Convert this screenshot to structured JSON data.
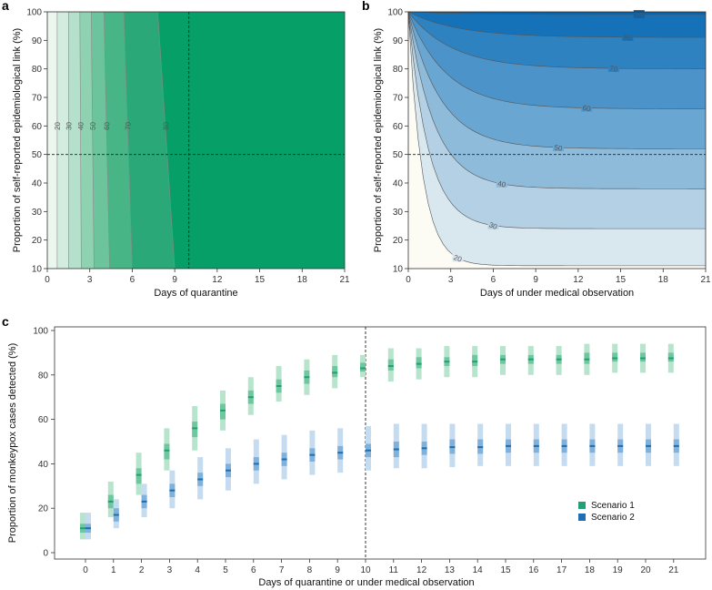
{
  "chart_data": [
    {
      "panel": "a",
      "type": "heatmap",
      "xlabel": "Days of quarantine",
      "ylabel": "Proportion of self-reported epidemiological link (%)",
      "xlim": [
        0,
        21
      ],
      "ylim": [
        10,
        100
      ],
      "xticks": [
        "0",
        "3",
        "6",
        "9",
        "12",
        "15",
        "18",
        "21"
      ],
      "yticks": [
        "10",
        "20",
        "30",
        "40",
        "50",
        "60",
        "70",
        "80",
        "90",
        "100"
      ],
      "contour_levels": [
        20,
        30,
        40,
        50,
        60,
        70,
        80
      ],
      "contour_label_text": [
        "20",
        "30",
        "40",
        "50",
        "60",
        "70",
        "80"
      ],
      "contour_x_at_10pct": [
        0.7,
        1.5,
        2.4,
        3.3,
        4.4,
        6.0,
        9.0
      ],
      "contour_x_at_100pct": [
        0.7,
        1.5,
        2.3,
        3.1,
        4.0,
        5.4,
        7.8
      ],
      "reference_x": 10,
      "reference_y": 50,
      "colors": [
        "#eaf6ee",
        "#d2ede0",
        "#b5e1cc",
        "#8fd2b2",
        "#6bc49c",
        "#47b585",
        "#2aa878",
        "#079f68"
      ]
    },
    {
      "panel": "b",
      "type": "heatmap",
      "xlabel": "Days of under medical observation",
      "ylabel": "Proportion of self-reported epidemiological link (%)",
      "xlim": [
        0,
        21
      ],
      "ylim": [
        10,
        100
      ],
      "xticks": [
        "0",
        "3",
        "6",
        "9",
        "12",
        "15",
        "18",
        "21"
      ],
      "yticks": [
        "10",
        "20",
        "30",
        "40",
        "50",
        "60",
        "70",
        "80",
        "90",
        "100"
      ],
      "contour_levels": [
        20,
        30,
        40,
        50,
        60,
        70,
        80,
        90
      ],
      "contour_label_text": [
        "20",
        "30",
        "40",
        "50",
        "60",
        "70",
        "80",
        "90"
      ],
      "contour_plateau_y": [
        11,
        24,
        38,
        52,
        66,
        80,
        91,
        99
      ],
      "reference_y": 50,
      "colors": [
        "#fcfbf4",
        "#d9e7ef",
        "#b4d0e4",
        "#8ebbda",
        "#6aa6d2",
        "#4c93c9",
        "#2f82c0",
        "#1672b8",
        "#0864ad"
      ]
    },
    {
      "panel": "c",
      "type": "scatter",
      "xlabel": "Days of quarantine or under medical observation",
      "ylabel": "Proportion of monkeypox cases detected (%)",
      "categories": [
        "0",
        "1",
        "2",
        "3",
        "4",
        "5",
        "6",
        "7",
        "8",
        "9",
        "10",
        "11",
        "12",
        "13",
        "14",
        "15",
        "16",
        "17",
        "18",
        "19",
        "20",
        "21"
      ],
      "ylim": [
        0,
        100
      ],
      "yticks": [
        "0",
        "20",
        "40",
        "60",
        "80",
        "100"
      ],
      "reference_x": 10,
      "series": [
        {
          "name": "Scenario 1",
          "color_outer": "#b7e4cd",
          "color_inner": "#6fc7a0",
          "color_median": "#1fa273",
          "values": [
            11,
            23,
            35,
            46,
            56,
            64,
            70,
            75,
            79,
            81,
            83,
            84,
            85,
            86,
            86,
            87,
            87,
            87,
            87,
            87.5,
            87.5,
            87.5
          ],
          "lower95": [
            6,
            16,
            26,
            37,
            46,
            55,
            62,
            68,
            71,
            74,
            79,
            77,
            78,
            79,
            79,
            80,
            80,
            80,
            80,
            81,
            81,
            81
          ],
          "upper95": [
            18,
            32,
            45,
            56,
            66,
            73,
            79,
            84,
            87,
            89,
            89,
            92,
            92,
            93,
            93,
            93,
            93,
            93,
            94,
            94,
            94,
            94
          ],
          "lower50": [
            9,
            20,
            31,
            42,
            52,
            60,
            67,
            72,
            76,
            79,
            81.5,
            82,
            83,
            84,
            84,
            85,
            85,
            85,
            85,
            86,
            86,
            86
          ],
          "upper50": [
            13,
            26,
            38,
            49,
            59,
            67,
            73,
            78,
            82,
            84,
            85.5,
            87,
            88,
            88,
            89,
            89,
            89,
            89,
            90,
            90,
            90,
            90
          ]
        },
        {
          "name": "Scenario 2",
          "color_outer": "#c5dbef",
          "color_inner": "#7fb1da",
          "color_median": "#1c6fb3",
          "values": [
            11,
            17,
            23,
            28,
            33,
            37,
            40,
            42,
            44,
            45,
            46,
            46.5,
            47,
            47.5,
            47.5,
            48,
            48,
            48,
            48,
            48,
            48,
            48
          ],
          "lower95": [
            6,
            11,
            16,
            20,
            24,
            28,
            31,
            33,
            35,
            36,
            37,
            38,
            38,
            38.5,
            39,
            39,
            39,
            39,
            39,
            39,
            39,
            39
          ],
          "upper95": [
            18,
            24,
            31,
            37,
            43,
            47,
            51,
            53,
            55,
            56,
            57,
            58,
            58,
            58,
            58,
            58,
            58,
            58,
            58,
            58,
            58,
            58
          ],
          "lower50": [
            9,
            14,
            20,
            25,
            30,
            34,
            37,
            39,
            41,
            42,
            43,
            43,
            44,
            44.5,
            44.5,
            45,
            45,
            45,
            45,
            45,
            45,
            45
          ],
          "upper50": [
            13,
            20,
            26,
            31,
            36,
            40,
            43,
            45,
            47,
            48,
            49,
            50,
            50,
            51,
            51,
            51,
            51,
            51,
            51,
            51,
            51,
            51
          ]
        }
      ]
    }
  ],
  "panel_labels": {
    "a": "a",
    "b": "b",
    "c": "c"
  }
}
